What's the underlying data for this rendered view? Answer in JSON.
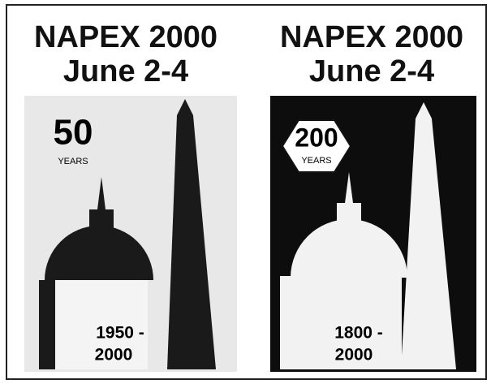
{
  "panels": [
    {
      "title": "NAPEX 2000",
      "subtitle": "June 2-4",
      "badge_number": "50",
      "badge_label": "YEARS",
      "years_from": "1950 -",
      "years_to": "2000"
    },
    {
      "title": "NAPEX 2000",
      "subtitle": "June 2-4",
      "badge_number": "200",
      "badge_label": "YEARS",
      "years_from": "1800 -",
      "years_to": "2000"
    }
  ]
}
